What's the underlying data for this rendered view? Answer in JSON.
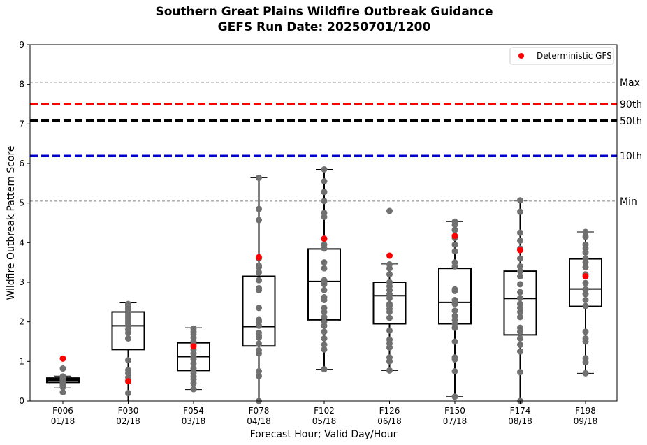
{
  "chart_data": {
    "type": "box",
    "title": "Southern Great Plains Wildfire Outbreak Guidance",
    "subtitle": "GEFS Run Date: 20250701/1200",
    "xlabel": "Forecast Hour; Valid Day/Hour",
    "ylabel": "Wildfire Outbreak Pattern Score",
    "ylim": [
      0,
      9
    ],
    "yticks": [
      "0",
      "1",
      "2",
      "3",
      "4",
      "5",
      "6",
      "7",
      "8",
      "9"
    ],
    "grid": false,
    "legend": {
      "placement": "top-right",
      "entries": [
        "Deterministic GFS"
      ]
    },
    "categories": [
      {
        "hour": "F006",
        "valid": "01/18"
      },
      {
        "hour": "F030",
        "valid": "02/18"
      },
      {
        "hour": "F054",
        "valid": "03/18"
      },
      {
        "hour": "F078",
        "valid": "04/18"
      },
      {
        "hour": "F102",
        "valid": "05/18"
      },
      {
        "hour": "F126",
        "valid": "06/18"
      },
      {
        "hour": "F150",
        "valid": "07/18"
      },
      {
        "hour": "F174",
        "valid": "08/18"
      },
      {
        "hour": "F198",
        "valid": "09/18"
      }
    ],
    "reference_lines": [
      {
        "label": "Max",
        "value": 8.05,
        "color": "#808080",
        "style": "thin-dashed"
      },
      {
        "label": "90th",
        "value": 7.5,
        "color": "#ff0000",
        "style": "thick-dashed"
      },
      {
        "label": "50th",
        "value": 7.08,
        "color": "#000000",
        "style": "thick-dashed"
      },
      {
        "label": "10th",
        "value": 6.19,
        "color": "#0000cc",
        "style": "thick-dashed"
      },
      {
        "label": "Min",
        "value": 5.05,
        "color": "#808080",
        "style": "thin-dashed"
      }
    ],
    "boxes": [
      {
        "whislo": 0.33,
        "q1": 0.47,
        "median": 0.53,
        "q3": 0.58,
        "whishi": 0.63
      },
      {
        "whislo": 0.0,
        "q1": 1.3,
        "median": 1.9,
        "q3": 2.25,
        "whishi": 2.48
      },
      {
        "whislo": 0.29,
        "q1": 0.77,
        "median": 1.12,
        "q3": 1.47,
        "whishi": 1.85
      },
      {
        "whislo": 0.0,
        "q1": 1.39,
        "median": 1.88,
        "q3": 3.15,
        "whishi": 5.64
      },
      {
        "whislo": 0.8,
        "q1": 2.05,
        "median": 3.02,
        "q3": 3.84,
        "whishi": 5.85
      },
      {
        "whislo": 0.77,
        "q1": 1.95,
        "median": 2.66,
        "q3": 3.0,
        "whishi": 3.46
      },
      {
        "whislo": 0.11,
        "q1": 1.95,
        "median": 2.49,
        "q3": 3.35,
        "whishi": 4.53
      },
      {
        "whislo": 0.0,
        "q1": 1.67,
        "median": 2.59,
        "q3": 3.28,
        "whishi": 5.07
      },
      {
        "whislo": 0.7,
        "q1": 2.39,
        "median": 2.83,
        "q3": 3.59,
        "whishi": 4.27
      }
    ],
    "members": [
      [
        0.22,
        0.35,
        0.4,
        0.43,
        0.45,
        0.47,
        0.49,
        0.5,
        0.51,
        0.52,
        0.53,
        0.54,
        0.55,
        0.56,
        0.57,
        0.58,
        0.6,
        0.62,
        0.82
      ],
      [
        0.2,
        0.5,
        0.6,
        0.7,
        0.78,
        1.03,
        1.58,
        1.72,
        1.8,
        1.9,
        1.95,
        2.0,
        2.05,
        2.1,
        2.15,
        2.2,
        2.3,
        2.35,
        2.4,
        2.45
      ],
      [
        0.3,
        0.45,
        0.55,
        0.62,
        0.7,
        0.82,
        0.95,
        1.05,
        1.12,
        1.2,
        1.3,
        1.42,
        1.5,
        1.6,
        1.68,
        1.75,
        1.83
      ],
      [
        0.0,
        0.63,
        0.75,
        1.2,
        1.28,
        1.45,
        1.6,
        1.65,
        1.72,
        1.9,
        2.0,
        2.05,
        2.35,
        2.8,
        2.85,
        3.05,
        3.25,
        3.38,
        3.42,
        3.6,
        4.57,
        4.85,
        5.64
      ],
      [
        0.8,
        1.3,
        1.42,
        1.58,
        1.75,
        1.9,
        2.0,
        2.12,
        2.25,
        2.35,
        2.55,
        2.62,
        2.8,
        2.95,
        3.0,
        3.05,
        3.35,
        3.5,
        3.85,
        3.95,
        4.1,
        4.65,
        4.75,
        5.05,
        5.28,
        5.55,
        5.85
      ],
      [
        0.77,
        1.0,
        1.1,
        1.35,
        1.45,
        1.55,
        1.78,
        2.1,
        2.25,
        2.32,
        2.4,
        2.45,
        2.6,
        2.7,
        2.8,
        2.9,
        3.0,
        3.2,
        3.35,
        3.45,
        4.8
      ],
      [
        0.11,
        0.75,
        1.05,
        1.1,
        1.5,
        1.85,
        1.95,
        2.05,
        2.15,
        2.28,
        2.45,
        2.55,
        2.78,
        2.82,
        3.4,
        3.5,
        3.78,
        3.95,
        4.12,
        4.32,
        4.45,
        4.53
      ],
      [
        0.0,
        0.73,
        1.25,
        1.42,
        1.58,
        1.75,
        1.85,
        2.12,
        2.25,
        2.35,
        2.45,
        2.6,
        2.75,
        2.95,
        3.15,
        3.28,
        3.4,
        3.6,
        3.85,
        4.05,
        4.25,
        4.78,
        5.07
      ],
      [
        0.7,
        0.98,
        1.08,
        1.5,
        1.58,
        1.75,
        2.4,
        2.55,
        2.7,
        2.82,
        2.98,
        3.2,
        3.38,
        3.5,
        3.6,
        3.75,
        3.85,
        3.95,
        4.15,
        4.27
      ]
    ],
    "deterministic": [
      1.07,
      0.5,
      1.38,
      3.63,
      4.1,
      3.67,
      4.17,
      3.81,
      3.15
    ],
    "colors": {
      "member": "#707070",
      "deterministic": "#ff0000",
      "box": "#000000"
    }
  }
}
